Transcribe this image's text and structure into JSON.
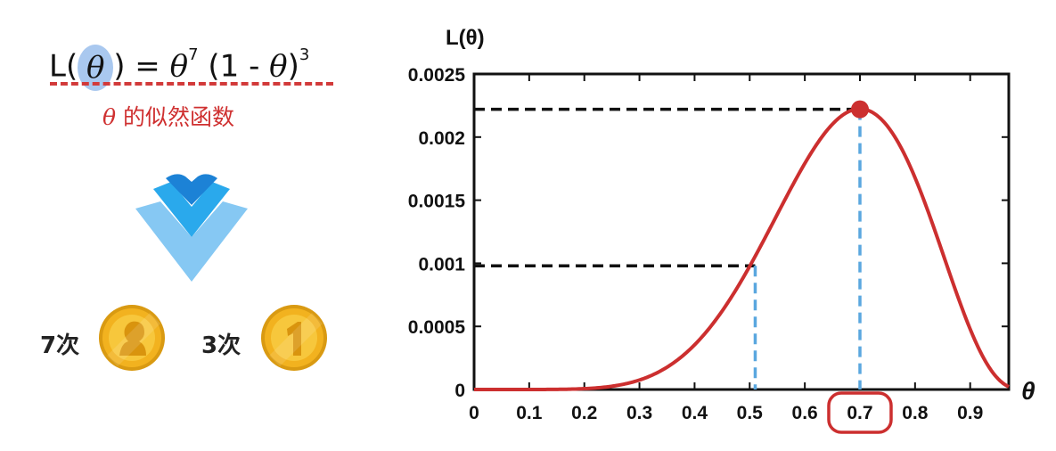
{
  "formula": {
    "lhs_prefix": "L(",
    "theta": "θ",
    "lhs_suffix": ")",
    "equals": "=",
    "exp_a": "7",
    "factor_open": "(1 - ",
    "factor_close": ")",
    "exp_b": "3"
  },
  "caption": {
    "theta": "θ",
    "text": "的似然函数"
  },
  "outcomes": [
    {
      "count": "7次",
      "coin_icon": "coin-head-icon"
    },
    {
      "count": "3次",
      "coin_icon": "coin-one-icon"
    }
  ],
  "colors": {
    "curve": "#cc2f2f",
    "guide_blue": "#5aa7df",
    "guide_black": "#111111",
    "arrow_light": "#86c8f3",
    "arrow_mid": "#2aa9ec",
    "arrow_dark": "#1c82d6",
    "coin": "#f2b21f"
  },
  "chart_data": {
    "type": "line",
    "ylabel": "L(θ)",
    "xlabel": "θ",
    "xlim": [
      0,
      0.97
    ],
    "ylim": [
      0,
      0.0025
    ],
    "x_ticks": [
      "0",
      "0.1",
      "0.2",
      "0.3",
      "0.4",
      "0.5",
      "0.6",
      "0.7",
      "0.8",
      "0.9"
    ],
    "y_ticks": [
      "0",
      "0.0005",
      "0.001",
      "0.0015",
      "0.002",
      "0.0025"
    ],
    "function": "θ^7 (1 - θ)^3",
    "exponents": {
      "a": 7,
      "b": 3
    },
    "peak": {
      "x": 0.7,
      "y": 0.00222
    },
    "reference": {
      "x": 0.51,
      "y": 0.00098
    },
    "highlight_tick": "0.7",
    "grid": false,
    "legend": "none"
  }
}
